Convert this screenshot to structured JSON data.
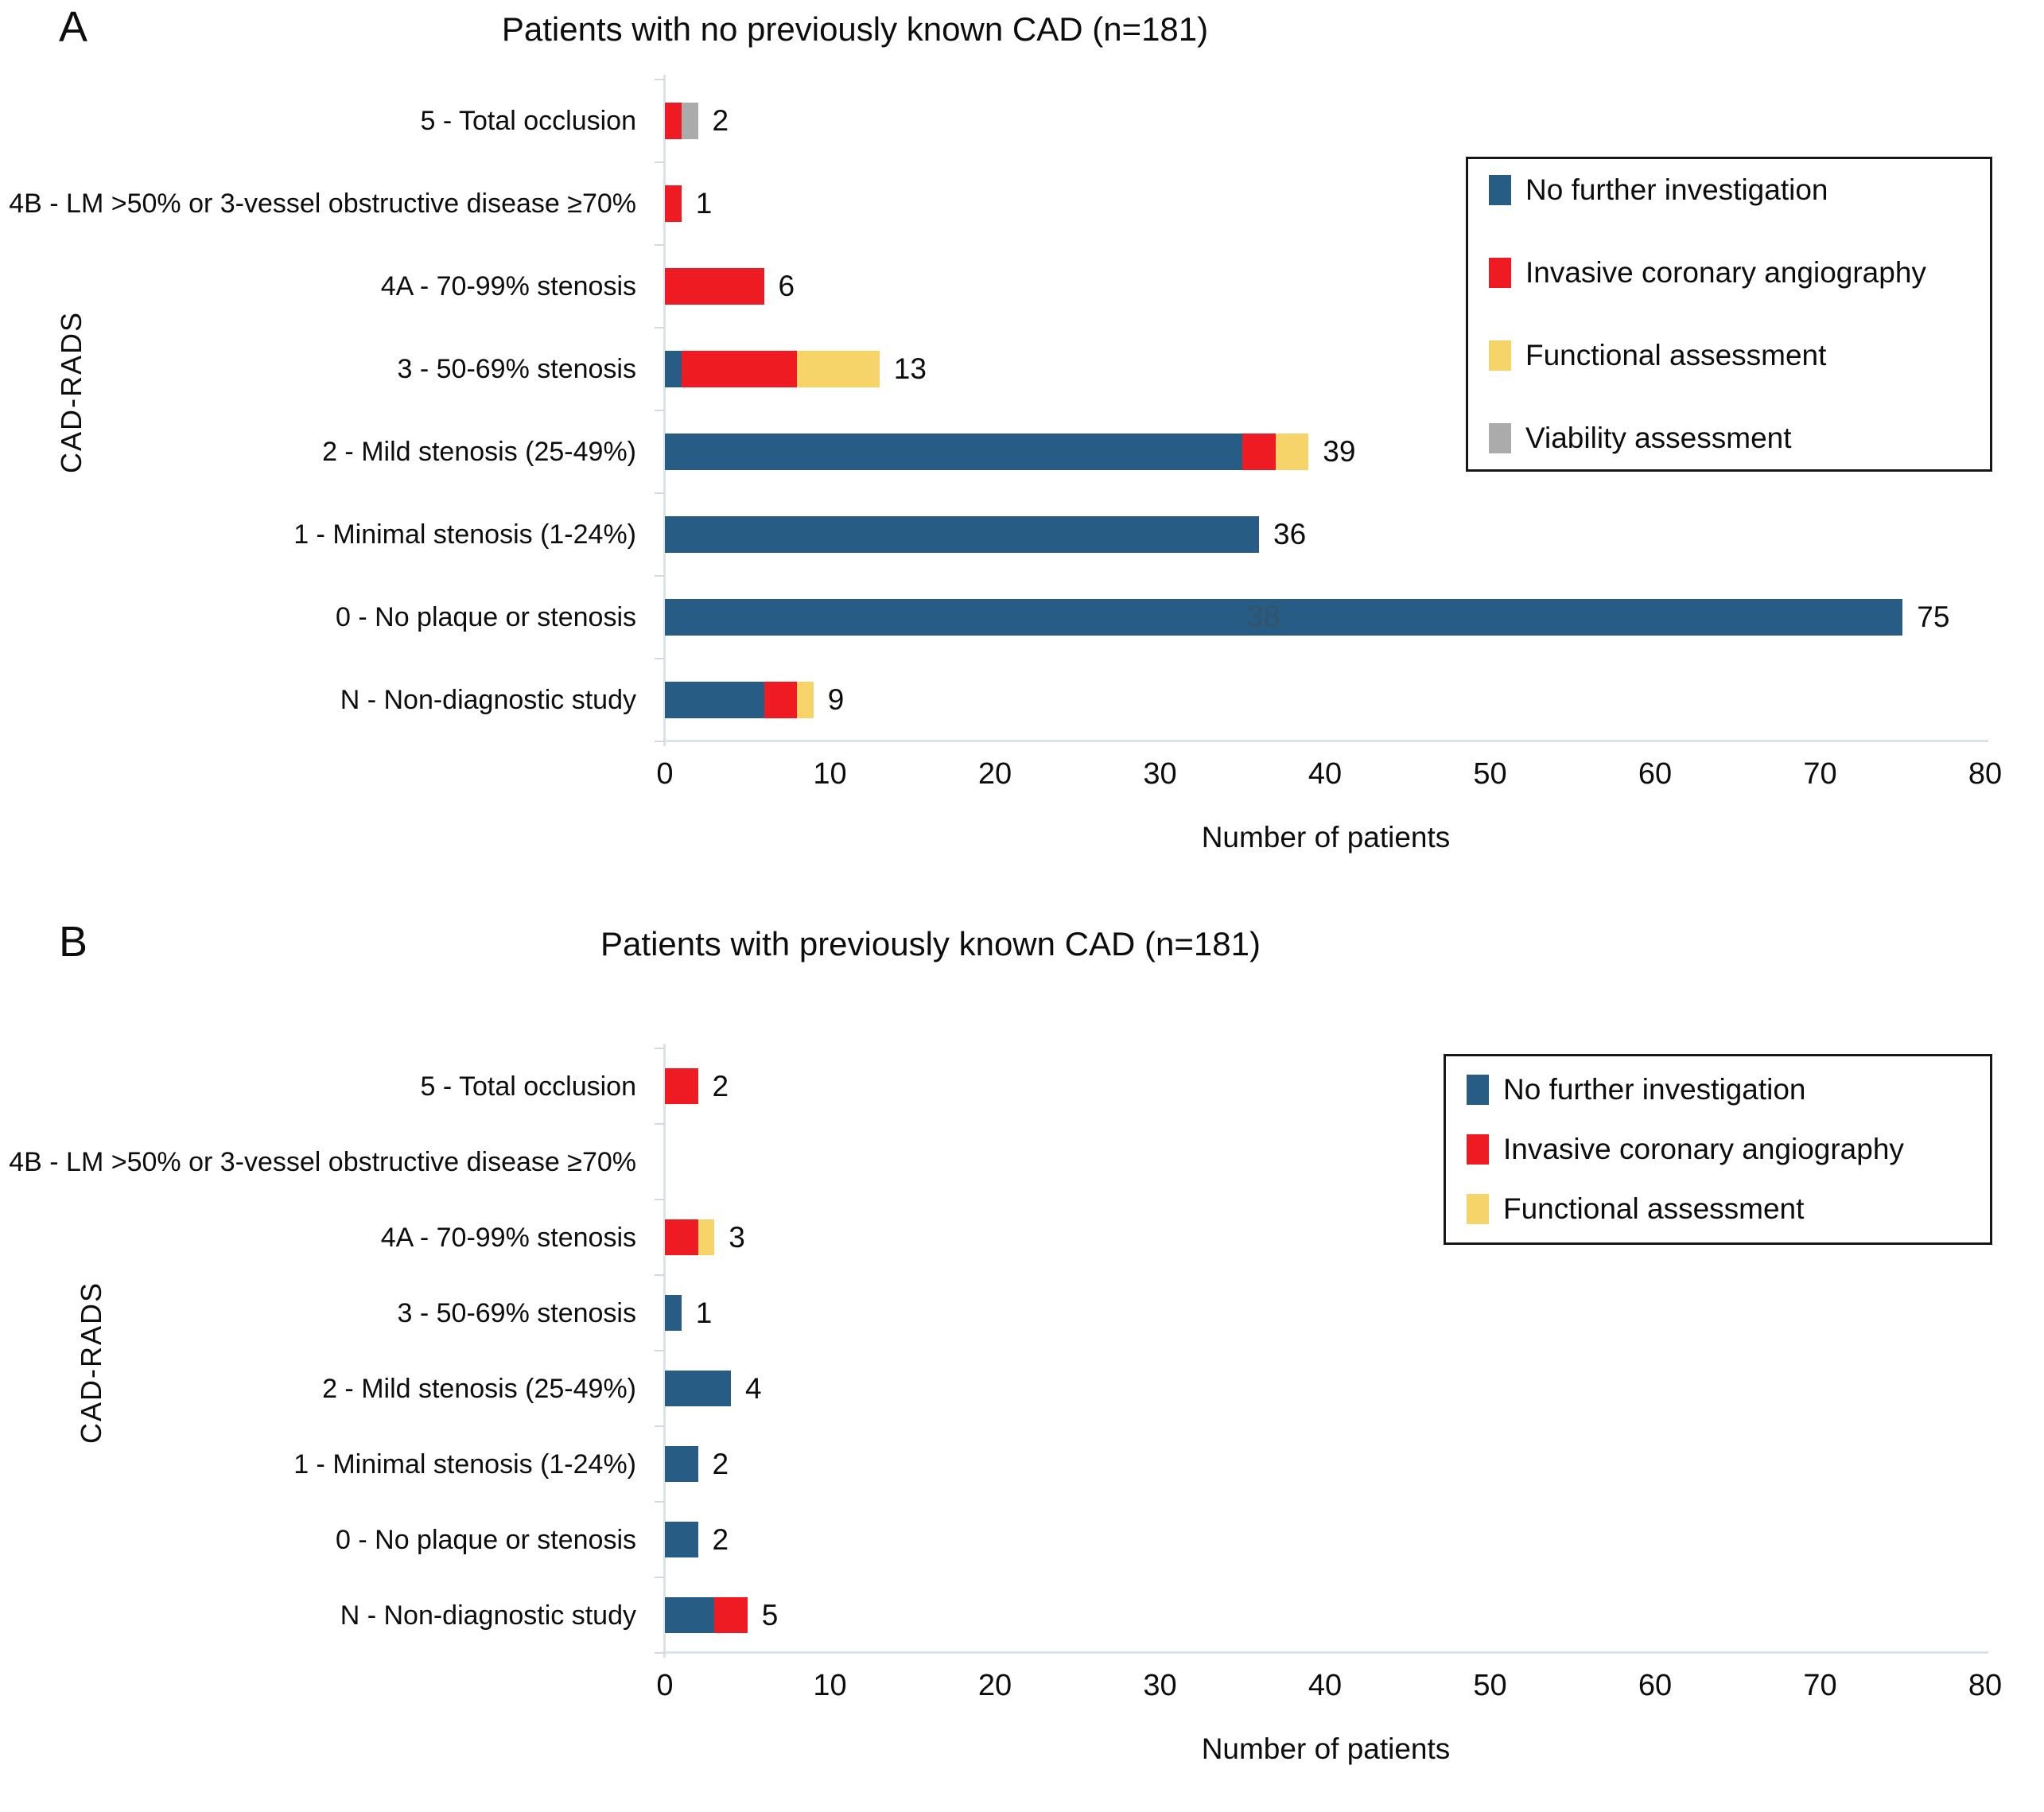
{
  "colors": {
    "blue": "#275D84",
    "red": "#EE1B23",
    "yellow": "#F6D469",
    "gray": "#ABABAB",
    "axis": "#dde2e6",
    "legend_border": "#161616"
  },
  "chart_data": [
    {
      "panel_label": "A",
      "type": "bar",
      "orientation": "horizontal",
      "stacked": true,
      "title": "Patients with no previously known CAD (n=181)",
      "xlabel": "Number of patients",
      "ylabel": "CAD-RADS",
      "xlim": [
        0,
        80
      ],
      "xticks": [
        0,
        10,
        20,
        30,
        40,
        50,
        60,
        70,
        80
      ],
      "grid": false,
      "legend_position": "upper right",
      "categories": [
        "5 - Total occlusion",
        "4B - LM >50% or  3-vessel obstructive disease ≥70%",
        "4A - 70-99% stenosis",
        "3 - 50-69% stenosis",
        "2 - Mild stenosis (25-49%)",
        "1 - Minimal stenosis (1-24%)",
        "0 - No plaque or stenosis",
        "N - Non-diagnostic study"
      ],
      "series": [
        {
          "name": "No further investigation",
          "color_key": "blue",
          "values": [
            0,
            0,
            0,
            1,
            35,
            36,
            75,
            6
          ]
        },
        {
          "name": "Invasive coronary angiography",
          "color_key": "red",
          "values": [
            1,
            1,
            6,
            7,
            2,
            0,
            0,
            2
          ]
        },
        {
          "name": "Functional assessment",
          "color_key": "yellow",
          "values": [
            0,
            0,
            0,
            5,
            2,
            0,
            0,
            1
          ]
        },
        {
          "name": "Viability assessment",
          "color_key": "gray",
          "values": [
            1,
            0,
            0,
            0,
            0,
            0,
            0,
            0
          ]
        }
      ],
      "bar_total_labels": [
        "2",
        "1",
        "6",
        "13",
        "39",
        "36",
        "75",
        "9"
      ],
      "legend": [
        {
          "label": "No further investigation",
          "color_key": "blue"
        },
        {
          "label": "Invasive coronary  angiography",
          "color_key": "red"
        },
        {
          "label": "Functional assessment",
          "color_key": "yellow"
        },
        {
          "label": "Viability assessment",
          "color_key": "gray"
        }
      ],
      "ghost_label": {
        "row": 6,
        "text": "38"
      }
    },
    {
      "panel_label": "B",
      "type": "bar",
      "orientation": "horizontal",
      "stacked": true,
      "title": "Patients with  previously known CAD (n=181)",
      "xlabel": "Number of patients",
      "ylabel": "CAD-RADS",
      "xlim": [
        0,
        80
      ],
      "xticks": [
        0,
        10,
        20,
        30,
        40,
        50,
        60,
        70,
        80
      ],
      "grid": false,
      "legend_position": "upper right",
      "categories": [
        "5 - Total occlusion",
        "4B - LM >50% or  3-vessel obstructive disease ≥70%",
        "4A - 70-99% stenosis",
        "3 - 50-69% stenosis",
        "2 - Mild stenosis (25-49%)",
        "1 - Minimal stenosis (1-24%)",
        "0 - No plaque or stenosis",
        "N - Non-diagnostic study"
      ],
      "series": [
        {
          "name": "No further investigation",
          "color_key": "blue",
          "values": [
            0,
            0,
            0,
            1,
            4,
            2,
            2,
            3
          ]
        },
        {
          "name": "Invasive coronary angiography",
          "color_key": "red",
          "values": [
            2,
            0,
            2,
            0,
            0,
            0,
            0,
            2
          ]
        },
        {
          "name": "Functional assessment",
          "color_key": "yellow",
          "values": [
            0,
            0,
            1,
            0,
            0,
            0,
            0,
            0
          ]
        }
      ],
      "bar_total_labels": [
        "2",
        "",
        "3",
        "1",
        "4",
        "2",
        "2",
        "5"
      ],
      "legend": [
        {
          "label": "No further investigation",
          "color_key": "blue"
        },
        {
          "label": "Invasive coronary  angiography",
          "color_key": "red"
        },
        {
          "label": "Functional assessment",
          "color_key": "yellow"
        }
      ],
      "ghost_label": null
    }
  ]
}
